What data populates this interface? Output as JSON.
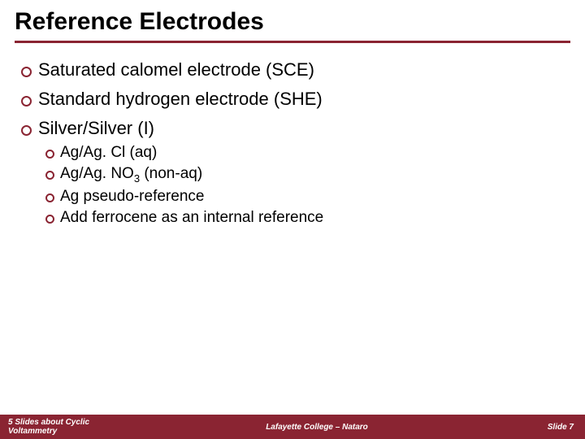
{
  "colors": {
    "accent": "#8a2432",
    "background": "#ffffff",
    "text": "#000000",
    "footer_text": "#ffffff"
  },
  "typography": {
    "title_fontsize": 30,
    "bullet_fontsize": 22,
    "subbullet_fontsize": 19,
    "footer_fontsize": 10,
    "font_family": "Arial"
  },
  "title": "Reference Electrodes",
  "bullets": [
    {
      "text": "Saturated calomel electrode (SCE)"
    },
    {
      "text": "Standard hydrogen electrode (SHE)"
    },
    {
      "text": "Silver/Silver (I)"
    }
  ],
  "sub_bullets": [
    {
      "text": "Ag/Ag. Cl (aq)"
    },
    {
      "html": "Ag/Ag. NO<sub>3</sub> (non-aq)"
    },
    {
      "text": "Ag pseudo-reference"
    },
    {
      "text": "Add ferrocene as an internal reference"
    }
  ],
  "footer": {
    "left": "5 Slides about Cyclic Voltammetry",
    "center": "Lafayette College – Nataro",
    "right": "Slide 7"
  }
}
